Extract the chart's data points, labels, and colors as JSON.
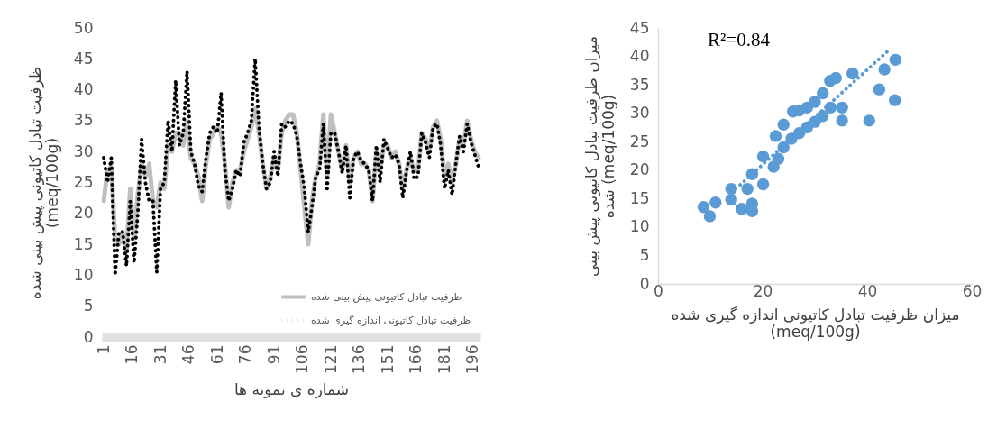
{
  "chart_data": [
    {
      "type": "line",
      "xlabel": "شماره ی نمونه ها",
      "ylabel": "ظرفیت تبادل کاتیونی پیش بینی شده (meq/100g)",
      "x": [
        1,
        3,
        5,
        7,
        9,
        11,
        13,
        15,
        17,
        19,
        21,
        23,
        25,
        27,
        29,
        31,
        33,
        35,
        37,
        39,
        41,
        43,
        45,
        47,
        49,
        51,
        53,
        55,
        57,
        59,
        61,
        63,
        65,
        67,
        69,
        71,
        73,
        75,
        77,
        79,
        81,
        83,
        85,
        87,
        89,
        91,
        93,
        95,
        97,
        99,
        101,
        103,
        105,
        107,
        109,
        111,
        113,
        115,
        117,
        119,
        121,
        123,
        125,
        127,
        129,
        131,
        133,
        135,
        137,
        139,
        141,
        143,
        145,
        147,
        149,
        151,
        153,
        155,
        157,
        159,
        161,
        163,
        165,
        167,
        169,
        171,
        173,
        175,
        177,
        179,
        181,
        183,
        185,
        187,
        189,
        191,
        193,
        195,
        197,
        199
      ],
      "xlim": [
        0,
        200
      ],
      "xticks": [
        1,
        16,
        31,
        46,
        61,
        76,
        91,
        106,
        121,
        136,
        151,
        166,
        181,
        196
      ],
      "ylim": [
        0,
        50
      ],
      "yticks": [
        0,
        5,
        10,
        15,
        20,
        25,
        30,
        35,
        40,
        45,
        50
      ],
      "grid": false,
      "legend": "bottom right",
      "series": [
        {
          "name": "ظرفیت تبادل کاتیونی پیش بینی شده",
          "color": "#bfbfbf",
          "line_style": "solid",
          "values": [
            22,
            27,
            27.5,
            16,
            15,
            17,
            14,
            24,
            16,
            23,
            28,
            26,
            28,
            22,
            21,
            25,
            24,
            31,
            30,
            33,
            33,
            31,
            35,
            29,
            28,
            26,
            22,
            28,
            32,
            33,
            34,
            33,
            28,
            21,
            25,
            27,
            27,
            30,
            32,
            34,
            37,
            33,
            28,
            24,
            26,
            29,
            27,
            33,
            35,
            36,
            36,
            33,
            27,
            21,
            15,
            22,
            26,
            28,
            36,
            26,
            36,
            33,
            30,
            27,
            31,
            25,
            29,
            30,
            28,
            28,
            27,
            22,
            30,
            27,
            31,
            31,
            29,
            30,
            28,
            24,
            27,
            29,
            27,
            27,
            33,
            32,
            30,
            34,
            35,
            32,
            26,
            28,
            25,
            28,
            32,
            31,
            35,
            32,
            30,
            29
          ]
        },
        {
          "name": "ظرفیت تبادل کاتیونی اندازه گیری شده",
          "color": "#000000",
          "line_style": "dotted",
          "values": [
            29,
            25,
            29,
            10,
            17,
            17,
            11.5,
            22,
            12,
            20,
            32,
            25,
            22,
            22,
            10.5,
            24,
            25,
            35,
            30,
            41.5,
            31,
            33,
            43,
            30,
            28,
            24.5,
            23.5,
            29,
            33,
            34,
            33,
            39.5,
            27,
            22,
            24,
            27,
            26,
            31.5,
            33,
            35,
            45,
            34,
            28,
            24,
            25,
            30,
            26,
            34.5,
            34,
            35,
            34.5,
            32.5,
            28,
            24,
            17,
            21,
            26,
            27,
            34.5,
            24,
            33,
            33,
            30,
            26.5,
            31,
            22.5,
            29,
            30,
            28.5,
            28,
            27,
            22,
            31,
            25,
            32,
            30.5,
            29,
            29.5,
            28,
            22.5,
            27,
            30,
            25.5,
            26,
            33,
            31.5,
            29,
            34,
            34.5,
            31,
            24,
            27,
            23,
            28,
            32.5,
            30,
            34.5,
            31.5,
            29.5,
            27.5
          ]
        }
      ]
    },
    {
      "type": "scatter",
      "xlabel": "میزان ظرفیت تبادل کاتیونی اندازه گیری شده (meq/100g)",
      "ylabel": "میزان ظرفیت تبادل کاتیونی پیش بینی شده (meq/100g)",
      "annotations": [
        "R²=0.84"
      ],
      "xlim": [
        0,
        60
      ],
      "xticks": [
        0,
        20,
        40,
        60
      ],
      "ylim": [
        0,
        45
      ],
      "yticks": [
        0,
        5,
        10,
        15,
        20,
        25,
        30,
        35,
        40,
        45
      ],
      "grid": false,
      "legend": false,
      "series": [
        {
          "type": "scatter",
          "marker": "circle",
          "color": "#5b9bd5",
          "x": [
            45.4,
            43.3,
            42.3,
            45.3,
            40.4,
            37.2,
            34,
            35.2,
            35.2,
            8.7,
            9.9,
            11,
            14,
            14,
            16,
            17.1,
            18,
            18,
            18,
            20.1,
            20.1,
            22.1,
            23,
            32.9,
            22.5,
            24,
            25.8,
            27,
            28.5,
            30,
            31.5,
            24,
            25.5,
            27,
            28.5,
            30,
            31.5,
            33
          ],
          "values": [
            39.4,
            37.7,
            34.2,
            32.3,
            28.7,
            37,
            36.2,
            28.7,
            31,
            13.5,
            11.9,
            14.3,
            16.7,
            14.8,
            13.2,
            16.7,
            14.1,
            12.8,
            19.3,
            17.5,
            22.4,
            20.6,
            22,
            35.7,
            26,
            28,
            30.3,
            30.5,
            31,
            32,
            33.5,
            24,
            25.5,
            26.5,
            27.5,
            28.5,
            29.5,
            31
          ]
        },
        {
          "type": "line",
          "marker": "none",
          "color": "#5b9bd5",
          "line_style": "dotted",
          "x": [
            15.7,
            44.4
          ],
          "values": [
            17.4,
            41.3
          ]
        }
      ]
    }
  ]
}
